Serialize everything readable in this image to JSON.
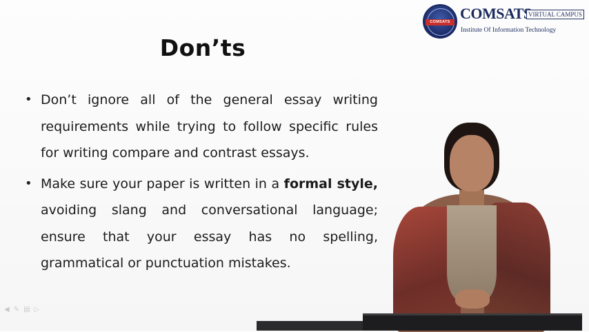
{
  "logo": {
    "seal_text": "COMSATS",
    "brand": "COMSATS",
    "badge": "VIRTUAL CAMPUS",
    "tagline": "Institute Of Information Technology"
  },
  "slide": {
    "title": "Don’ts",
    "bullets": [
      {
        "parts": [
          {
            "text": "Don’t ignore all of the general essay writing requirements while trying to follow specific rules for writing compare and contrast essays.",
            "bold": false
          }
        ]
      },
      {
        "parts": [
          {
            "text": "Make sure your paper is written in a ",
            "bold": false
          },
          {
            "text": "formal style,",
            "bold": true
          },
          {
            "text": " avoiding slang and conversational language; ensure that your essay has no spelling, grammatical or punctuation mistakes.",
            "bold": false
          }
        ]
      }
    ]
  },
  "nav_icons": [
    "prev-arrow-icon",
    "edit-icon",
    "menu-icon",
    "next-icon"
  ]
}
